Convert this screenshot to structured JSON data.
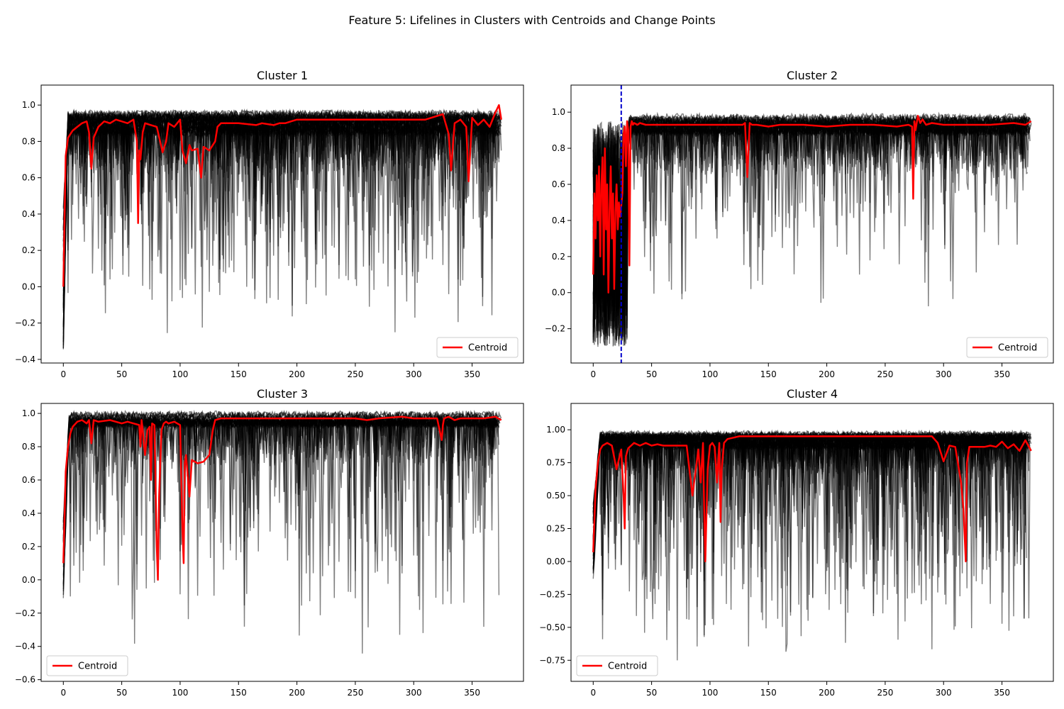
{
  "figure": {
    "suptitle": "Feature 5: Lifelines in Clusters with Centroids and Change Points"
  },
  "colors": {
    "lifeline": "#000000",
    "centroid": "#ff0000",
    "change_point": "#0000cc",
    "axes_border": "#000000"
  },
  "chart_data": [
    {
      "type": "line",
      "title": "Cluster 1",
      "xlim": [
        -19,
        394
      ],
      "ylim": [
        -0.42,
        1.11
      ],
      "x_ticks": [
        0,
        50,
        100,
        150,
        200,
        250,
        300,
        350
      ],
      "y_ticks": [
        -0.4,
        -0.2,
        0.0,
        0.2,
        0.4,
        0.6,
        0.8,
        1.0
      ],
      "y_tick_labels": [
        "−0.4",
        "−0.2",
        "0.0",
        "0.2",
        "0.4",
        "0.6",
        "0.8",
        "1.0"
      ],
      "legend": {
        "label": "Centroid",
        "placement": "lower-right"
      },
      "change_points": [],
      "lifelines": {
        "count": 45,
        "x_max": 375,
        "plateau_start": 4,
        "plateau": 0.9,
        "plateau_spread": 0.05,
        "start_min": -0.34,
        "dip_min": -0.3,
        "dip_rate": 0.04
      },
      "series": [
        {
          "name": "Centroid",
          "x": [
            0,
            1,
            2,
            4,
            8,
            12,
            16,
            20,
            22,
            24,
            26,
            30,
            35,
            40,
            45,
            50,
            55,
            60,
            63,
            64,
            65,
            66,
            68,
            70,
            75,
            80,
            85,
            88,
            90,
            95,
            100,
            102,
            105,
            108,
            110,
            115,
            118,
            120,
            125,
            130,
            132,
            135,
            150,
            165,
            170,
            180,
            185,
            190,
            195,
            200,
            230,
            260,
            290,
            310,
            325,
            330,
            332,
            335,
            340,
            345,
            347,
            350,
            355,
            360,
            365,
            370,
            373,
            375
          ],
          "y": [
            0.0,
            0.35,
            0.72,
            0.82,
            0.86,
            0.88,
            0.9,
            0.91,
            0.85,
            0.65,
            0.82,
            0.88,
            0.91,
            0.9,
            0.92,
            0.91,
            0.9,
            0.92,
            0.8,
            0.35,
            0.75,
            0.7,
            0.85,
            0.9,
            0.89,
            0.88,
            0.74,
            0.8,
            0.9,
            0.88,
            0.92,
            0.75,
            0.68,
            0.78,
            0.75,
            0.76,
            0.6,
            0.77,
            0.75,
            0.8,
            0.88,
            0.9,
            0.9,
            0.89,
            0.9,
            0.89,
            0.9,
            0.9,
            0.91,
            0.92,
            0.92,
            0.92,
            0.92,
            0.92,
            0.95,
            0.84,
            0.64,
            0.9,
            0.92,
            0.88,
            0.58,
            0.93,
            0.89,
            0.92,
            0.88,
            0.96,
            1.0,
            0.92
          ]
        }
      ]
    },
    {
      "type": "line",
      "title": "Cluster 2",
      "xlim": [
        -19,
        394
      ],
      "ylim": [
        -0.39,
        1.15
      ],
      "x_ticks": [
        0,
        50,
        100,
        150,
        200,
        250,
        300,
        350
      ],
      "y_ticks": [
        -0.2,
        0.0,
        0.2,
        0.4,
        0.6,
        0.8,
        1.0
      ],
      "y_tick_labels": [
        "−0.2",
        "0.0",
        "0.2",
        "0.4",
        "0.6",
        "0.8",
        "1.0"
      ],
      "legend": {
        "label": "Centroid",
        "placement": "lower-right"
      },
      "change_points": [
        24
      ],
      "lifelines": {
        "count": 40,
        "x_max": 375,
        "plateau_start": 32,
        "plateau": 0.93,
        "plateau_spread": 0.04,
        "start_min": -0.3,
        "dip_min": -0.2,
        "dip_rate": 0.02,
        "chaotic_until": 30
      },
      "series": [
        {
          "name": "Centroid",
          "x": [
            0,
            1,
            2,
            3,
            4,
            5,
            6,
            7,
            8,
            9,
            10,
            11,
            12,
            13,
            14,
            15,
            16,
            17,
            18,
            19,
            20,
            21,
            22,
            23,
            24,
            25,
            26,
            27,
            28,
            29,
            30,
            31,
            32,
            33,
            34,
            35,
            38,
            40,
            45,
            50,
            60,
            80,
            100,
            120,
            128,
            130,
            132,
            134,
            136,
            140,
            150,
            160,
            170,
            180,
            200,
            220,
            240,
            260,
            270,
            273,
            274,
            275,
            276,
            278,
            280,
            282,
            285,
            290,
            300,
            320,
            340,
            360,
            370,
            375
          ],
          "y": [
            0.1,
            0.55,
            0.3,
            0.65,
            0.4,
            0.7,
            0.2,
            0.6,
            0.75,
            0.1,
            0.8,
            0.35,
            0.6,
            0.0,
            0.45,
            0.7,
            0.3,
            0.55,
            0.02,
            0.45,
            0.6,
            0.35,
            0.5,
            0.42,
            0.48,
            0.55,
            0.88,
            0.92,
            0.7,
            0.95,
            0.9,
            0.15,
            0.92,
            0.95,
            0.93,
            0.94,
            0.93,
            0.94,
            0.93,
            0.93,
            0.93,
            0.93,
            0.93,
            0.93,
            0.93,
            0.94,
            0.64,
            0.94,
            0.93,
            0.93,
            0.92,
            0.93,
            0.93,
            0.93,
            0.92,
            0.93,
            0.93,
            0.92,
            0.93,
            0.92,
            0.52,
            0.95,
            0.9,
            0.98,
            0.94,
            0.96,
            0.93,
            0.94,
            0.93,
            0.93,
            0.93,
            0.94,
            0.93,
            0.95
          ]
        }
      ]
    },
    {
      "type": "line",
      "title": "Cluster 3",
      "xlim": [
        -19,
        394
      ],
      "ylim": [
        -0.61,
        1.06
      ],
      "x_ticks": [
        0,
        50,
        100,
        150,
        200,
        250,
        300,
        350
      ],
      "y_ticks": [
        -0.6,
        -0.4,
        -0.2,
        0.0,
        0.2,
        0.4,
        0.6,
        0.8,
        1.0
      ],
      "y_tick_labels": [
        "−0.6",
        "−0.4",
        "−0.2",
        "0.0",
        "0.2",
        "0.4",
        "0.6",
        "0.8",
        "1.0"
      ],
      "legend": {
        "label": "Centroid",
        "placement": "lower-left"
      },
      "change_points": [],
      "lifelines": {
        "count": 30,
        "x_max": 375,
        "plateau_start": 5,
        "plateau": 0.96,
        "plateau_spread": 0.03,
        "start_min": -0.15,
        "dip_min": -0.53,
        "dip_rate": 0.035
      },
      "series": [
        {
          "name": "Centroid",
          "x": [
            0,
            1,
            2,
            4,
            6,
            8,
            12,
            16,
            20,
            22,
            24,
            26,
            30,
            40,
            50,
            55,
            60,
            65,
            66,
            67,
            68,
            70,
            72,
            74,
            75,
            76,
            78,
            80,
            81,
            82,
            84,
            86,
            88,
            90,
            95,
            100,
            102,
            103,
            104,
            105,
            108,
            110,
            115,
            120,
            125,
            128,
            130,
            135,
            140,
            160,
            180,
            200,
            220,
            250,
            260,
            270,
            290,
            300,
            320,
            324,
            325,
            326,
            330,
            335,
            340,
            350,
            360,
            370,
            375
          ],
          "y": [
            0.1,
            0.35,
            0.65,
            0.8,
            0.88,
            0.92,
            0.95,
            0.96,
            0.94,
            0.96,
            0.82,
            0.96,
            0.95,
            0.96,
            0.94,
            0.95,
            0.94,
            0.93,
            0.8,
            0.96,
            0.9,
            0.75,
            0.9,
            0.92,
            0.6,
            0.94,
            0.93,
            0.2,
            0.0,
            0.5,
            0.9,
            0.94,
            0.95,
            0.94,
            0.95,
            0.93,
            0.3,
            0.1,
            0.7,
            0.75,
            0.5,
            0.72,
            0.7,
            0.71,
            0.75,
            0.9,
            0.96,
            0.97,
            0.97,
            0.97,
            0.97,
            0.97,
            0.97,
            0.97,
            0.96,
            0.97,
            0.98,
            0.97,
            0.97,
            0.84,
            0.93,
            0.97,
            0.98,
            0.96,
            0.97,
            0.97,
            0.97,
            0.98,
            0.96
          ]
        }
      ]
    },
    {
      "type": "line",
      "title": "Cluster 4",
      "xlim": [
        -19,
        394
      ],
      "ylim": [
        -0.91,
        1.2
      ],
      "x_ticks": [
        0,
        50,
        100,
        150,
        200,
        250,
        300,
        350
      ],
      "y_ticks": [
        -0.75,
        -0.5,
        -0.25,
        0.0,
        0.25,
        0.5,
        0.75,
        1.0
      ],
      "y_tick_labels": [
        "−0.75",
        "−0.50",
        "−0.25",
        "0.00",
        "0.25",
        "0.50",
        "0.75",
        "1.00"
      ],
      "legend": {
        "label": "Centroid",
        "placement": "lower-left"
      },
      "change_points": [],
      "lifelines": {
        "count": 50,
        "x_max": 375,
        "plateau_start": 6,
        "plateau": 0.92,
        "plateau_spread": 0.05,
        "start_min": -0.22,
        "dip_min": -0.82,
        "dip_rate": 0.04
      },
      "series": [
        {
          "name": "Centroid",
          "x": [
            0,
            1,
            2,
            4,
            6,
            8,
            12,
            16,
            20,
            24,
            26,
            27,
            28,
            30,
            35,
            40,
            45,
            50,
            55,
            60,
            70,
            80,
            85,
            90,
            92,
            94,
            95,
            96,
            98,
            100,
            102,
            104,
            106,
            108,
            109,
            110,
            112,
            115,
            120,
            125,
            130,
            150,
            180,
            200,
            230,
            260,
            290,
            295,
            300,
            305,
            310,
            315,
            317,
            318,
            319,
            320,
            322,
            325,
            330,
            335,
            340,
            345,
            350,
            355,
            360,
            365,
            370,
            375
          ],
          "y": [
            0.07,
            0.3,
            0.55,
            0.75,
            0.85,
            0.88,
            0.9,
            0.88,
            0.7,
            0.85,
            0.5,
            0.25,
            0.8,
            0.86,
            0.9,
            0.88,
            0.9,
            0.88,
            0.89,
            0.88,
            0.88,
            0.88,
            0.5,
            0.85,
            0.6,
            0.9,
            0.4,
            0.0,
            0.7,
            0.88,
            0.9,
            0.87,
            0.6,
            0.9,
            0.3,
            0.7,
            0.9,
            0.93,
            0.94,
            0.95,
            0.95,
            0.95,
            0.95,
            0.95,
            0.95,
            0.95,
            0.95,
            0.9,
            0.76,
            0.88,
            0.87,
            0.6,
            0.4,
            0.2,
            0.0,
            0.75,
            0.87,
            0.87,
            0.87,
            0.87,
            0.88,
            0.87,
            0.91,
            0.86,
            0.89,
            0.84,
            0.92,
            0.84
          ]
        }
      ]
    }
  ]
}
